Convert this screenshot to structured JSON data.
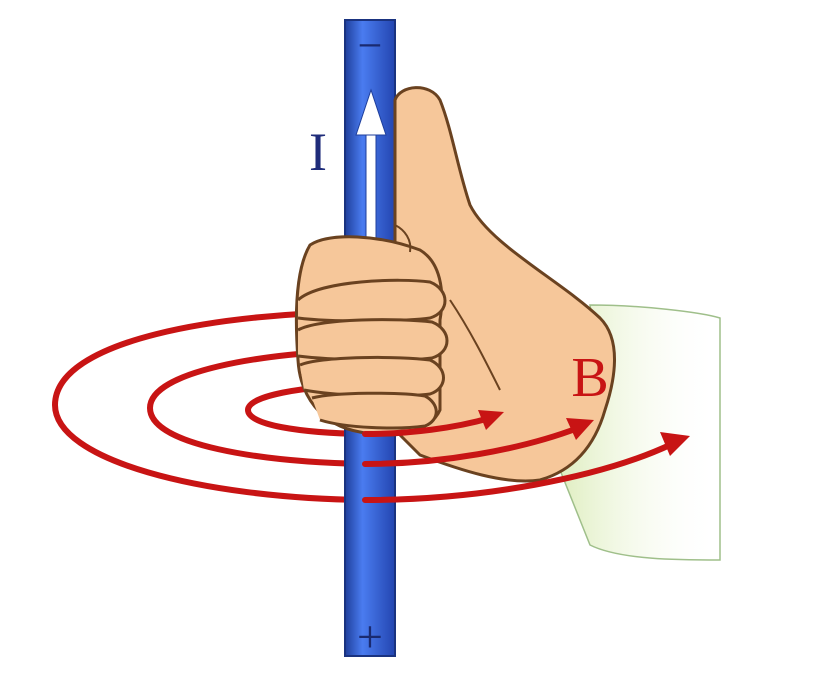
{
  "labels": {
    "current": "I",
    "magnetic_field": "B",
    "negative_terminal": "−",
    "positive_terminal": "+"
  },
  "colors": {
    "background": "#ffffff",
    "wire": "#2f5fd6",
    "wire_dark": "#1f3f9c",
    "current_arrow": "#ffffff",
    "current_label": "#1f2c7a",
    "field_lines": "#c81414",
    "field_label": "#c81414",
    "skin": "#f6c79a",
    "skin_outline": "#6a4220",
    "sleeve": "#e7f2cf"
  },
  "icons": {
    "current_direction": "arrow-up-icon",
    "field_direction": "arrow-right-icon",
    "hand": "right-hand-thumb-up-icon"
  }
}
